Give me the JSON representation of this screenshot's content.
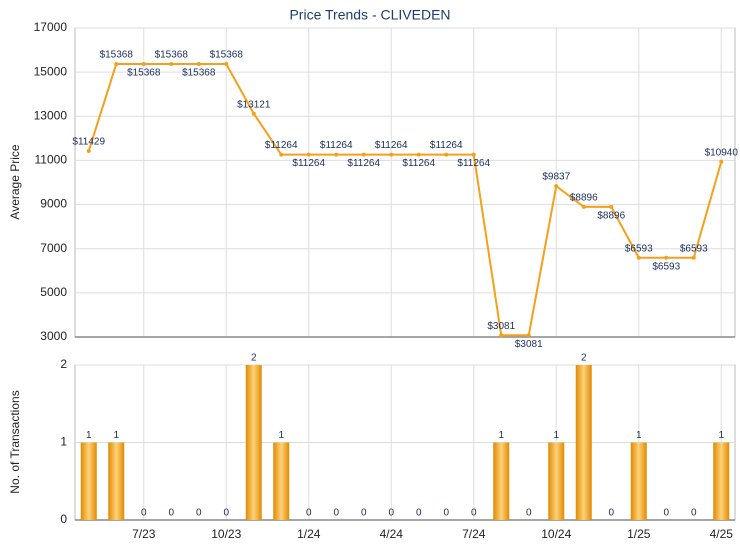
{
  "chart_data": [
    {
      "type": "line",
      "title": "Price Trends - CLIVEDEN",
      "y_label": "Average Price",
      "color": "#f5a01a",
      "values": [
        11429,
        15368,
        15368,
        15368,
        15368,
        15368,
        13121,
        11264,
        11264,
        11264,
        11264,
        11264,
        11264,
        11264,
        11264,
        3081,
        3081,
        9837,
        8896,
        8896,
        6593,
        6593,
        6593,
        10940
      ],
      "value_labels": [
        "$11429",
        "$15368",
        "$15368",
        "$15368",
        "$15368",
        "$15368",
        "$13121",
        "$11264",
        "$11264",
        "$11264",
        "$11264",
        "$11264",
        "$11264",
        "$11264",
        "$11264",
        "$3081",
        "$3081",
        "$9837",
        "$8896",
        "$8896",
        "$6593",
        "$6593",
        "$6593",
        "$10940"
      ],
      "ylim": [
        3000,
        17000
      ],
      "yticks": [
        3000,
        5000,
        7000,
        9000,
        11000,
        13000,
        15000,
        17000
      ],
      "grid": true
    },
    {
      "type": "bar",
      "y_label": "No. of Transactions",
      "color": "#f5a01a",
      "categories": [
        null,
        null,
        "7/23",
        null,
        null,
        "10/23",
        null,
        null,
        "1/24",
        null,
        null,
        "4/24",
        null,
        null,
        "7/24",
        null,
        null,
        "10/24",
        null,
        null,
        "1/25",
        null,
        null,
        "4/25"
      ],
      "values": [
        1,
        1,
        0,
        0,
        0,
        0,
        2,
        1,
        0,
        0,
        0,
        0,
        0,
        0,
        0,
        1,
        0,
        1,
        2,
        0,
        1,
        0,
        0,
        1
      ],
      "ylim": [
        0,
        2
      ],
      "yticks": [
        0,
        1,
        2
      ],
      "grid": true
    }
  ]
}
